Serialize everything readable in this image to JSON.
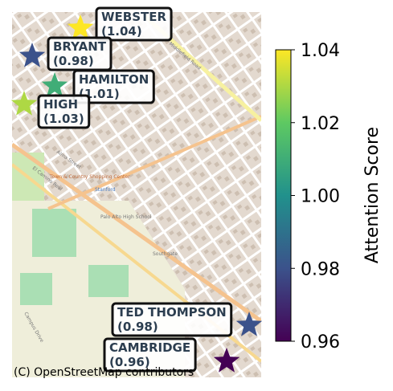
{
  "map": {
    "attribution": "(C) OpenStreetMap contributors",
    "place_labels": [
      "Alma Street",
      "El Camino Real",
      "Stanford",
      "Palo Alto High School",
      "Town & Country Shopping Center",
      "Middlefield Road",
      "Southgate",
      "Campus Drive"
    ],
    "markers": [
      {
        "name": "WEBSTER",
        "score": 1.04,
        "score_label": "(1.04)"
      },
      {
        "name": "BRYANT",
        "score": 0.98,
        "score_label": "(0.98)"
      },
      {
        "name": "HAMILTON",
        "score": 1.01,
        "score_label": "(1.01)"
      },
      {
        "name": "HIGH",
        "score": 1.03,
        "score_label": "(1.03)"
      },
      {
        "name": "TED THOMPSON",
        "score": 0.98,
        "score_label": "(0.98)"
      },
      {
        "name": "CAMBRIDGE",
        "score": 0.96,
        "score_label": "(0.96)"
      }
    ],
    "colorbar": {
      "label": "Attention Score",
      "lim": [
        0.96,
        1.04
      ],
      "ticks": [
        0.96,
        0.98,
        {
          "value": 1,
          "label": "1.00"
        },
        1.02,
        1.04
      ]
    }
  }
}
